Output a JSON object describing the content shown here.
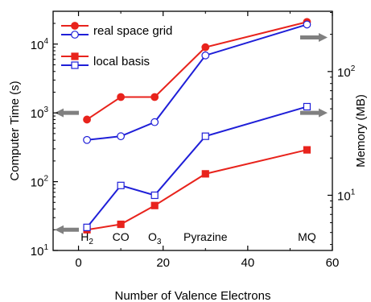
{
  "chart_data": {
    "type": "line",
    "title": "",
    "xlabel": "Number of Valence Electrons",
    "ylabel_left": "Computer Time (s)",
    "ylabel_right": "Memory (MB)",
    "xlim": [
      -6,
      60
    ],
    "ylim_left": [
      10,
      30000
    ],
    "ylim_right": [
      3.58,
      307
    ],
    "yscale": "log",
    "grid": false,
    "legend_position": "top-left",
    "x_ticks": [
      0,
      20,
      40,
      60
    ],
    "y_left_ticks": [
      {
        "value": 10,
        "base": "10",
        "exp": "1"
      },
      {
        "value": 100,
        "base": "10",
        "exp": "2"
      },
      {
        "value": 1000,
        "base": "10",
        "exp": "3"
      },
      {
        "value": 10000,
        "base": "10",
        "exp": "4"
      }
    ],
    "y_right_ticks": [
      {
        "value": 10,
        "base": "10",
        "exp": "1"
      },
      {
        "value": 100,
        "base": "10",
        "exp": "2"
      }
    ],
    "x": [
      2,
      10,
      18,
      30,
      54
    ],
    "series": [
      {
        "name": "real space grid",
        "marker": "circle",
        "filled": true,
        "color": "#e8231c",
        "axis": "left",
        "values": [
          800,
          1700,
          1700,
          9000,
          21000
        ]
      },
      {
        "name": "",
        "marker": "circle",
        "filled": false,
        "color": "#1f1fd8",
        "axis": "right",
        "values": [
          28,
          30,
          39,
          135,
          240
        ]
      },
      {
        "name": "local basis",
        "marker": "square",
        "filled": true,
        "color": "#e8231c",
        "axis": "left",
        "values": [
          20,
          24,
          45,
          130,
          290
        ]
      },
      {
        "name": "",
        "marker": "square",
        "filled": false,
        "color": "#1f1fd8",
        "axis": "right",
        "values": [
          5.5,
          12,
          10,
          30,
          52
        ]
      }
    ],
    "legend": [
      {
        "label": "real space grid",
        "marker": "circle",
        "colors": [
          "#e8231c",
          "#1f1fd8"
        ]
      },
      {
        "label": "local basis",
        "marker": "square",
        "colors": [
          "#e8231c",
          "#1f1fd8"
        ]
      }
    ],
    "annotations": [
      {
        "x": 2,
        "base": "H",
        "sub": "2"
      },
      {
        "x": 10,
        "base": "CO",
        "sub": ""
      },
      {
        "x": 18,
        "base": "O",
        "sub": "3"
      },
      {
        "x": 30,
        "base": "Pyrazine",
        "sub": ""
      },
      {
        "x": 54,
        "base": "MQ",
        "sub": ""
      }
    ],
    "axis_arrows": [
      {
        "points_to": "left",
        "y_axis": "left",
        "value": 20
      },
      {
        "points_to": "left",
        "y_axis": "left",
        "value": 1000
      },
      {
        "points_to": "right",
        "y_axis": "left",
        "value": 12500
      },
      {
        "points_to": "right",
        "y_axis": "left",
        "value": 1000
      }
    ],
    "arrow_color": "#808080"
  }
}
